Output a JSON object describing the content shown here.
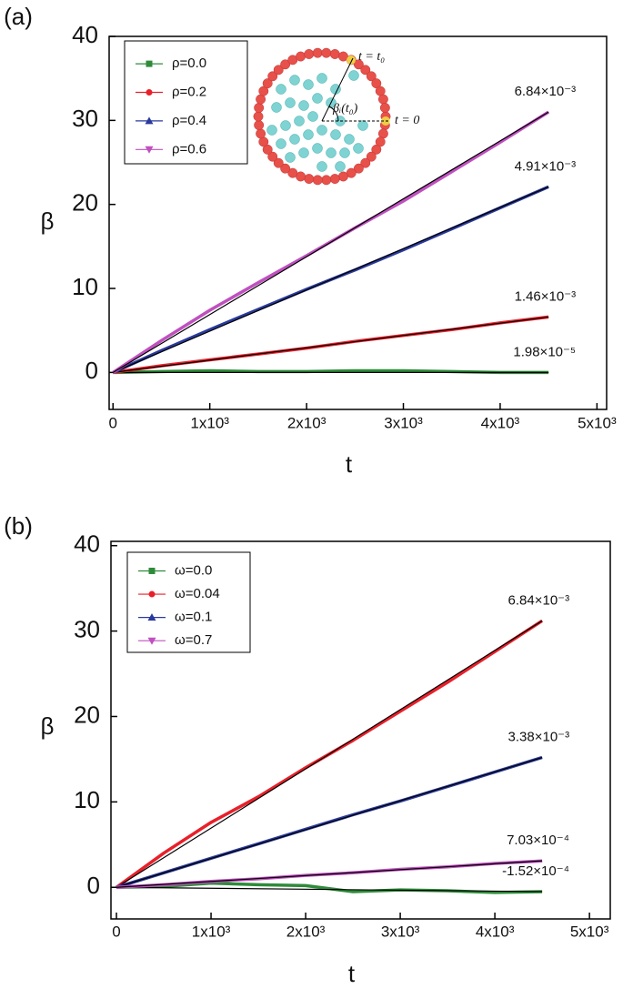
{
  "chart_data": [
    {
      "type": "line",
      "panel_label": "(a)",
      "x_label": "t",
      "y_label": "β",
      "xlim": [
        -40,
        5100
      ],
      "ylim": [
        -4.4,
        40
      ],
      "xticks": [
        0,
        {
          "value": 1000,
          "label": "1x10³"
        },
        {
          "value": 2000,
          "label": "2x10³"
        },
        {
          "value": 3000,
          "label": "3x10³"
        },
        {
          "value": 4000,
          "label": "4x10³"
        },
        {
          "value": 5000,
          "label": "5x10³"
        }
      ],
      "yticks": [
        0,
        10,
        20,
        30,
        40
      ],
      "legend": "upper left",
      "inset_labels": [
        "t = t₀",
        "t = 0",
        "βᵢ(t₀)"
      ],
      "x": [
        0,
        500,
        1000,
        1500,
        2000,
        2500,
        3000,
        3500,
        4000,
        4500
      ],
      "series": [
        {
          "name": "ρ=0.0",
          "color": "#2e8b3a",
          "marker": "square",
          "annotation": "1.98×10⁻⁵",
          "values": [
            0,
            0.1,
            0.2,
            0.1,
            0.1,
            0.2,
            0.2,
            0.1,
            0.0,
            0.0
          ]
        },
        {
          "name": "ρ=0.2",
          "color": "#e8202a",
          "marker": "circle",
          "annotation": "1.46×10⁻³",
          "values": [
            0,
            0.8,
            1.5,
            2.2,
            2.9,
            3.7,
            4.4,
            5.1,
            5.9,
            6.6
          ]
        },
        {
          "name": "ρ=0.4",
          "color": "#2a3a9c",
          "marker": "triangle-up",
          "annotation": "4.91×10⁻³",
          "values": [
            0,
            2.6,
            5.1,
            7.5,
            9.9,
            12.2,
            14.6,
            17.1,
            19.6,
            22.1
          ]
        },
        {
          "name": "ρ=0.6",
          "color": "#c050c0",
          "marker": "triangle-down",
          "annotation": "6.84×10⁻³",
          "values": [
            0,
            3.8,
            7.4,
            10.7,
            13.9,
            17.2,
            20.4,
            23.9,
            27.4,
            31
          ]
        }
      ]
    },
    {
      "type": "line",
      "panel_label": "(b)",
      "x_label": "t",
      "y_label": "β",
      "xlim": [
        -58,
        5220
      ],
      "ylim": [
        -3.7,
        40.5
      ],
      "xticks": [
        0,
        {
          "value": 1000,
          "label": "1x10³"
        },
        {
          "value": 2000,
          "label": "2x10³"
        },
        {
          "value": 3000,
          "label": "3x10³"
        },
        {
          "value": 4000,
          "label": "4x10³"
        },
        {
          "value": 5000,
          "label": "5x10³"
        }
      ],
      "yticks": [
        0,
        10,
        20,
        30,
        40
      ],
      "legend": "upper left",
      "x": [
        0,
        500,
        1000,
        1500,
        2000,
        2500,
        3000,
        3500,
        4000,
        4500
      ],
      "series": [
        {
          "name": "ω=0.0",
          "color": "#2e8b3a",
          "marker": "square",
          "annotation": "-1.52×10⁻⁴",
          "values": [
            0,
            0.1,
            0.5,
            0.3,
            0.2,
            -0.5,
            -0.3,
            -0.4,
            -0.6,
            -0.5
          ]
        },
        {
          "name": "ω=0.04",
          "color": "#e8202a",
          "marker": "circle",
          "annotation": "6.84×10⁻³",
          "values": [
            0,
            4,
            7.6,
            10.6,
            14,
            17.2,
            20.6,
            24,
            27.6,
            31.2
          ]
        },
        {
          "name": "ω=0.1",
          "color": "#2a3a9c",
          "marker": "triangle-up",
          "annotation": "3.38×10⁻³",
          "values": [
            0,
            1.7,
            3.4,
            5.1,
            6.8,
            8.5,
            10.1,
            11.8,
            13.5,
            15.2
          ]
        },
        {
          "name": "ω=0.7",
          "color": "#c050c0",
          "marker": "triangle-down",
          "annotation": "7.03×10⁻⁴",
          "values": [
            0,
            0.3,
            0.7,
            1.0,
            1.4,
            1.7,
            2.1,
            2.4,
            2.8,
            3.1
          ]
        }
      ]
    }
  ]
}
